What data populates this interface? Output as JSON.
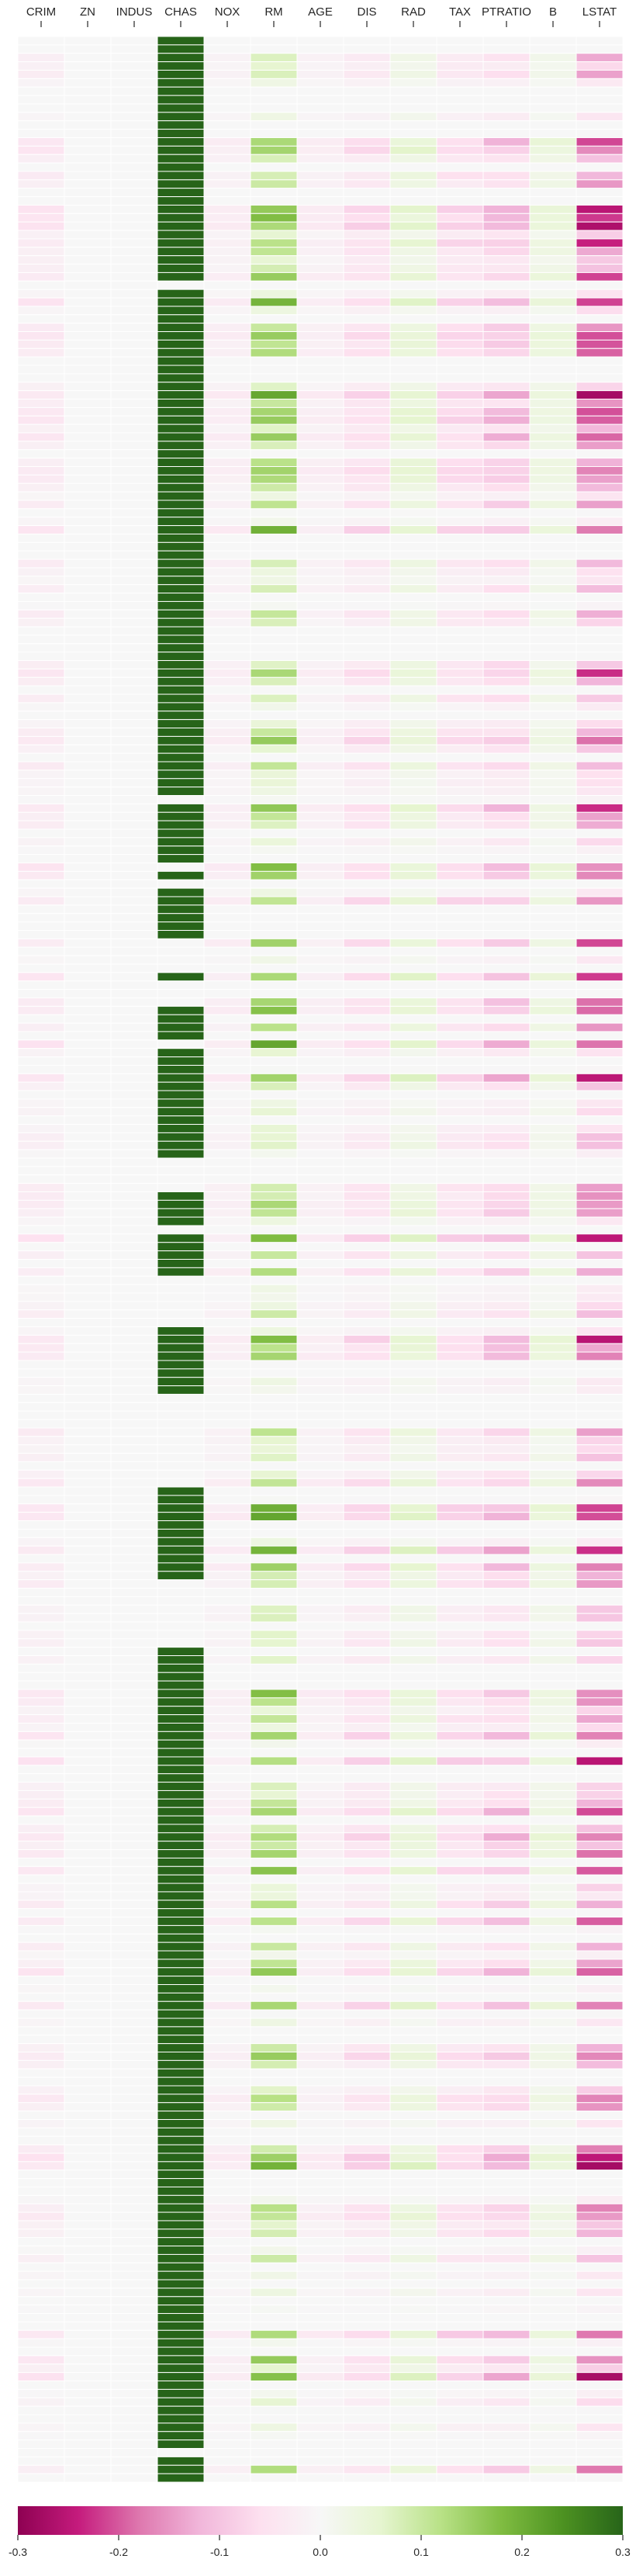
{
  "chart_data": {
    "type": "heatmap",
    "columns": [
      "CRIM",
      "ZN",
      "INDUS",
      "CHAS",
      "NOX",
      "RM",
      "AGE",
      "DIS",
      "RAD",
      "TAX",
      "PTRATIO",
      "B",
      "LSTAT"
    ],
    "row_count": 290,
    "vmin": -0.3,
    "vmax": 0.3,
    "colormap": "PiYG",
    "cell_gaps": "white lines between rows",
    "colorbar": {
      "orientation": "horizontal",
      "placement": "bottom",
      "ticks": [
        "-0.3",
        "-0.2",
        "-0.1",
        "0.0",
        "0.1",
        "0.2",
        "0.3"
      ],
      "tick_values": [
        -0.3,
        -0.2,
        -0.1,
        0.0,
        0.1,
        0.2,
        0.3
      ]
    },
    "column_profiles": {
      "CRIM": {
        "typical_range": [
          -0.06,
          0.0
        ]
      },
      "ZN": {
        "typical_range": [
          0.0,
          0.0
        ]
      },
      "INDUS": {
        "typical_range": [
          0.0,
          0.0
        ]
      },
      "CHAS": {
        "values_when_present": 0.3,
        "values_when_absent": 0.0
      },
      "NOX": {
        "typical_range": [
          -0.04,
          0.0
        ]
      },
      "RM": {
        "typical_range": [
          0.0,
          0.22
        ]
      },
      "AGE": {
        "typical_range": [
          -0.04,
          0.0
        ]
      },
      "DIS": {
        "typical_range": [
          -0.1,
          0.0
        ]
      },
      "RAD": {
        "typical_range": [
          0.0,
          0.08
        ]
      },
      "TAX": {
        "typical_range": [
          -0.1,
          0.0
        ]
      },
      "PTRATIO": {
        "typical_range": [
          -0.15,
          0.0
        ]
      },
      "B": {
        "typical_range": [
          0.0,
          0.06
        ]
      },
      "LSTAT": {
        "typical_range": [
          -0.3,
          0.0
        ]
      }
    },
    "chas_row_pattern": [
      1,
      1,
      1,
      1,
      1,
      1,
      1,
      1,
      1,
      1,
      1,
      1,
      1,
      1,
      1,
      1,
      1,
      1,
      1,
      1,
      1,
      1,
      1,
      1,
      1,
      1,
      1,
      1,
      1,
      0,
      1,
      1,
      1,
      1,
      1,
      1,
      1,
      1,
      1,
      1,
      1,
      1,
      1,
      1,
      1,
      1,
      1,
      1,
      1,
      1,
      1,
      1,
      1,
      1,
      1,
      1,
      1,
      1,
      1,
      1,
      1,
      1,
      1,
      1,
      1,
      1,
      1,
      1,
      1,
      1,
      1,
      1,
      1,
      1,
      1,
      1,
      1,
      1,
      1,
      1,
      1,
      1,
      1,
      1,
      1,
      1,
      1,
      1,
      1,
      1,
      0,
      1,
      1,
      1,
      1,
      1,
      1,
      1,
      0,
      1,
      0,
      1,
      1,
      1,
      1,
      1,
      1,
      0,
      0,
      0,
      0,
      1,
      0,
      0,
      0,
      1,
      1,
      1,
      1,
      0,
      1,
      1,
      1,
      1,
      1,
      1,
      1,
      1,
      1,
      1,
      1,
      1,
      1,
      0,
      0,
      0,
      0,
      1,
      1,
      1,
      1,
      0,
      1,
      1,
      1,
      1,
      1,
      0,
      0,
      0,
      0,
      0,
      0,
      1,
      1,
      1,
      1,
      1,
      1,
      1,
      1,
      0,
      0,
      0,
      0,
      0,
      0,
      0,
      0,
      0,
      0,
      0,
      1,
      1,
      1,
      1,
      1,
      1,
      1,
      1,
      1,
      1,
      1,
      0,
      0,
      0,
      0,
      0,
      0,
      0,
      0,
      1,
      1,
      1,
      1,
      1,
      1,
      1,
      1,
      1,
      1,
      1,
      1,
      1,
      1,
      1,
      1,
      1,
      1,
      1,
      1,
      1,
      1,
      1,
      1,
      1,
      1,
      1,
      1,
      1,
      1,
      1,
      1,
      1,
      1,
      1,
      1,
      1,
      1,
      1,
      1,
      1,
      1,
      1,
      1,
      1,
      1,
      1,
      1,
      1,
      1,
      1,
      1,
      1,
      1,
      1,
      1,
      1,
      1,
      1,
      1,
      1,
      1,
      1,
      1,
      1,
      1,
      1,
      1,
      1,
      1,
      1,
      1,
      1,
      1,
      1,
      1,
      1,
      1,
      1,
      1,
      1,
      1,
      1,
      1,
      1,
      1,
      1,
      1,
      1,
      1,
      1,
      1,
      1,
      1,
      1,
      0,
      1,
      1,
      1,
      1,
      1,
      1,
      1,
      1,
      1,
      1,
      1,
      1,
      1,
      1,
      1,
      1,
      1,
      1,
      1
    ]
  }
}
